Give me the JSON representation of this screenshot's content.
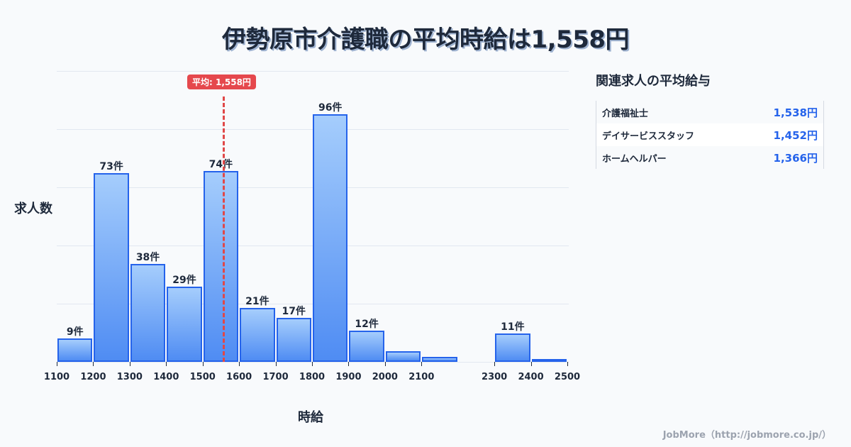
{
  "title": "伊勢原市介護職の平均時給は1,558円",
  "chart_data": {
    "type": "bar",
    "title": "伊勢原市介護職の平均時給は1,558円",
    "xlabel": "時給",
    "ylabel": "求人数",
    "bins": [
      {
        "from": 1100,
        "to": 1200,
        "value": 9,
        "label": "9件"
      },
      {
        "from": 1200,
        "to": 1300,
        "value": 73,
        "label": "73件"
      },
      {
        "from": 1300,
        "to": 1400,
        "value": 38,
        "label": "38件"
      },
      {
        "from": 1400,
        "to": 1500,
        "value": 29,
        "label": "29件"
      },
      {
        "from": 1500,
        "to": 1600,
        "value": 74,
        "label": "74件"
      },
      {
        "from": 1600,
        "to": 1700,
        "value": 21,
        "label": "21件"
      },
      {
        "from": 1700,
        "to": 1800,
        "value": 17,
        "label": "17件"
      },
      {
        "from": 1800,
        "to": 1900,
        "value": 96,
        "label": "96件"
      },
      {
        "from": 1900,
        "to": 2000,
        "value": 12,
        "label": "12件"
      },
      {
        "from": 2000,
        "to": 2100,
        "value": 4,
        "label": ""
      },
      {
        "from": 2100,
        "to": 2200,
        "value": 2,
        "label": ""
      },
      {
        "from": 2300,
        "to": 2400,
        "value": 11,
        "label": "11件"
      },
      {
        "from": 2400,
        "to": 2500,
        "value": 1,
        "label": ""
      }
    ],
    "x_ticks": [
      "1100",
      "1200",
      "1300",
      "1400",
      "1500",
      "1600",
      "1700",
      "1800",
      "1900",
      "2000",
      "2100",
      "2300",
      "2400",
      "2500"
    ],
    "x_range": [
      1100,
      2500
    ],
    "grid": true,
    "average": {
      "value": 1558,
      "label": "平均: 1,558円",
      "color": "#e5484d"
    },
    "bar_color": "#2563eb"
  },
  "panel": {
    "title": "関連求人の平均給与",
    "rows": [
      {
        "name": "介護福祉士",
        "value": "1,538円"
      },
      {
        "name": "デイサービススタッフ",
        "value": "1,452円"
      },
      {
        "name": "ホームヘルパー",
        "value": "1,366円"
      }
    ]
  },
  "footer": "JobMore（http://jobmore.co.jp/）"
}
